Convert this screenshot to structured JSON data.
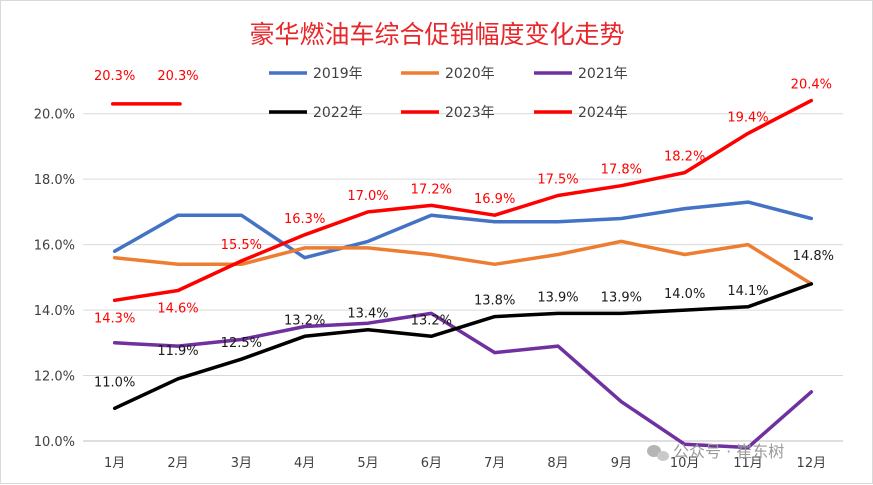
{
  "chart_data": {
    "type": "line",
    "title": "豪华燃油车综合促销幅度变化走势",
    "categories": [
      "1月",
      "2月",
      "3月",
      "4月",
      "5月",
      "6月",
      "7月",
      "8月",
      "9月",
      "10月",
      "11月",
      "12月"
    ],
    "yticks": [
      "10.0%",
      "12.0%",
      "14.0%",
      "16.0%",
      "18.0%",
      "20.0%"
    ],
    "ylim": [
      10.0,
      21.0
    ],
    "grid": true,
    "legend_position": "top",
    "series": [
      {
        "name": "2019年",
        "color": "#4472c4",
        "values": [
          15.8,
          16.9,
          16.9,
          15.6,
          16.1,
          16.9,
          16.7,
          16.7,
          16.8,
          17.1,
          17.3,
          16.8
        ]
      },
      {
        "name": "2020年",
        "color": "#ed7d31",
        "values": [
          15.6,
          15.4,
          15.4,
          15.9,
          15.9,
          15.7,
          15.4,
          15.7,
          16.1,
          15.7,
          16.0,
          14.8
        ]
      },
      {
        "name": "2021年",
        "color": "#7030a0",
        "values": [
          13.0,
          12.9,
          13.1,
          13.5,
          13.6,
          13.9,
          12.7,
          12.9,
          11.2,
          9.9,
          9.8,
          11.5
        ]
      },
      {
        "name": "2022年",
        "color": "#000000",
        "values": [
          11.0,
          11.9,
          12.5,
          13.2,
          13.4,
          13.2,
          13.8,
          13.9,
          13.9,
          14.0,
          14.1,
          14.8
        ]
      },
      {
        "name": "2023年",
        "color": "#ff0000",
        "values": [
          14.3,
          14.6,
          15.5,
          16.3,
          17.0,
          17.2,
          16.9,
          17.5,
          17.8,
          18.2,
          19.4,
          20.4
        ]
      },
      {
        "name": "2024年",
        "color": "#ff0000",
        "values": [
          20.3,
          20.3,
          null,
          null,
          null,
          null,
          null,
          null,
          null,
          null,
          null,
          null
        ]
      }
    ],
    "data_labels": {
      "2023年": [
        "14.3%",
        "14.6%",
        "15.5%",
        "16.3%",
        "17.0%",
        "17.2%",
        "16.9%",
        "17.5%",
        "17.8%",
        "18.2%",
        "19.4%",
        "20.4%"
      ],
      "2022年": [
        "11.0%",
        "11.9%",
        "12.5%",
        "13.2%",
        "13.4%",
        "13.2%",
        "13.8%",
        "13.9%",
        "13.9%",
        "14.0%",
        "14.1%",
        "14.8%"
      ],
      "2024年": [
        "20.3%",
        "20.3%",
        "",
        "",
        "",
        "",
        "",
        "",
        "",
        "",
        "",
        ""
      ]
    }
  },
  "watermark": {
    "icon": "wechat-icon",
    "text": "公众号 · 崔东树"
  }
}
